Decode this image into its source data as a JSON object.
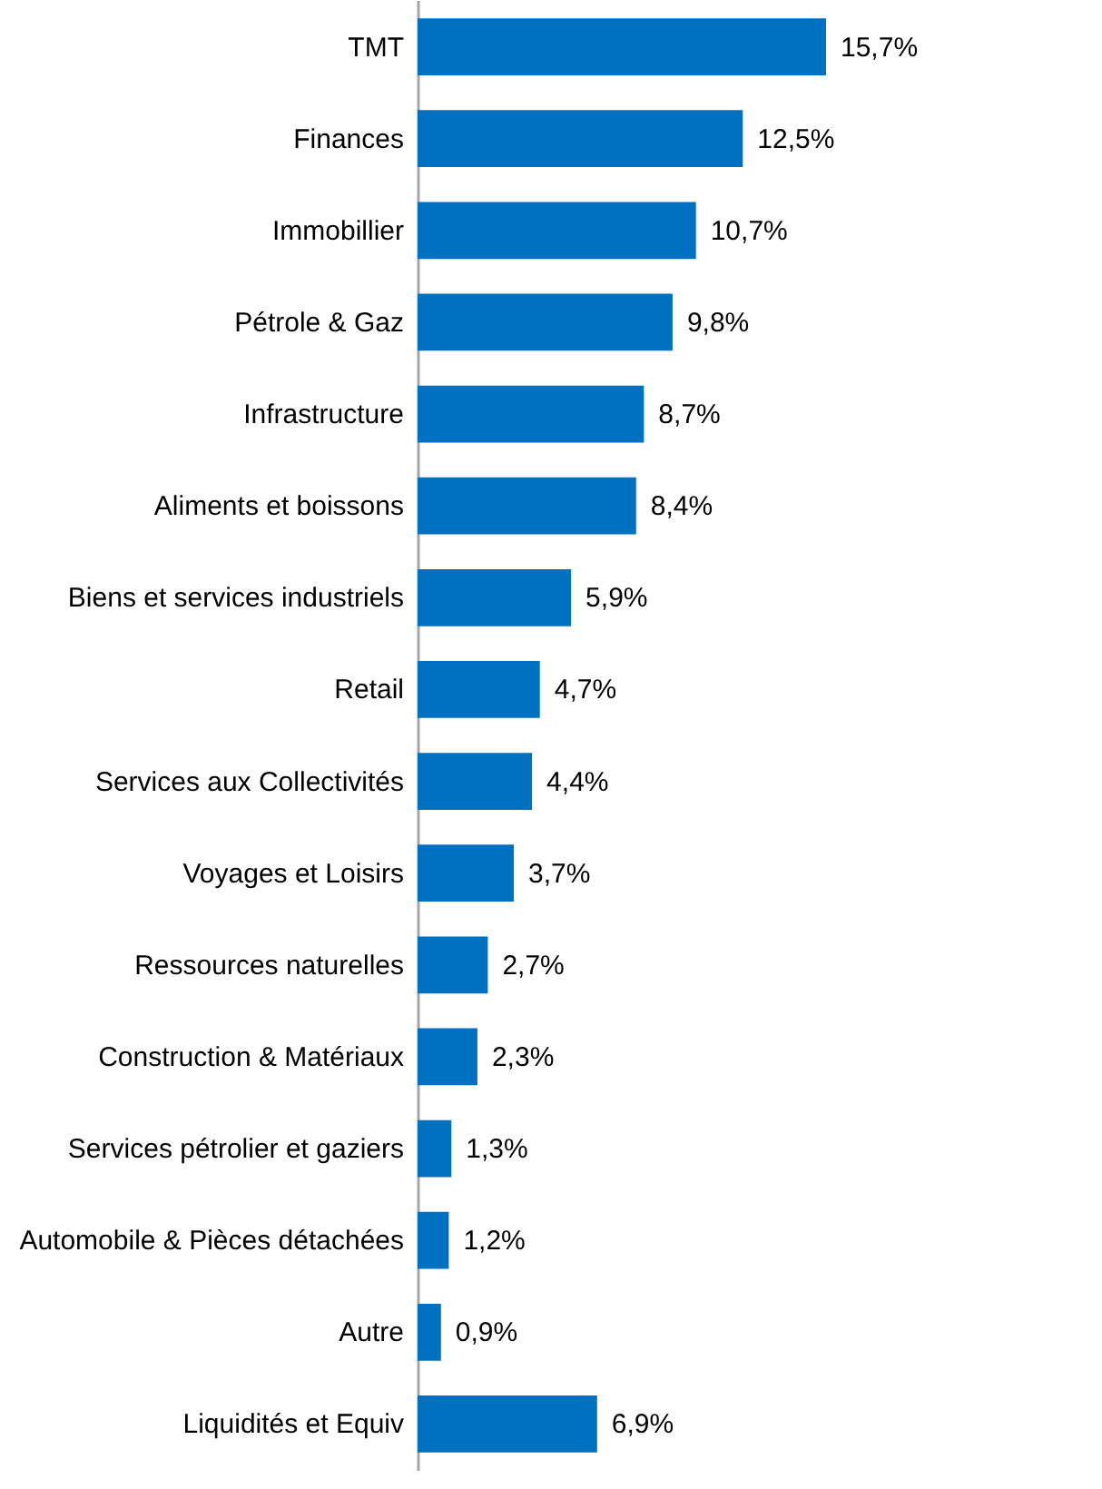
{
  "chart_data": {
    "type": "bar",
    "orientation": "horizontal",
    "categories": [
      "TMT",
      "Finances",
      "Immobillier",
      "Pétrole & Gaz",
      "Infrastructure",
      "Aliments et boissons",
      "Biens et services industriels",
      "Retail",
      "Services aux Collectivités",
      "Voyages et Loisirs",
      "Ressources naturelles",
      "Construction & Matériaux",
      "Services pétrolier et gaziers",
      "Automobile & Pièces détachées",
      "Autre",
      "Liquidités et Equiv"
    ],
    "values": [
      15.7,
      12.5,
      10.7,
      9.8,
      8.7,
      8.4,
      5.9,
      4.7,
      4.4,
      3.7,
      2.7,
      2.3,
      1.3,
      1.2,
      0.9,
      6.9
    ],
    "value_labels": [
      "15,7%",
      "12,5%",
      "10,7%",
      "9,8%",
      "8,7%",
      "8,4%",
      "5,9%",
      "4,7%",
      "4,4%",
      "3,7%",
      "2,7%",
      "2,3%",
      "1,3%",
      "1,2%",
      "0,9%",
      "6,9%"
    ],
    "color": "#0070c0"
  }
}
